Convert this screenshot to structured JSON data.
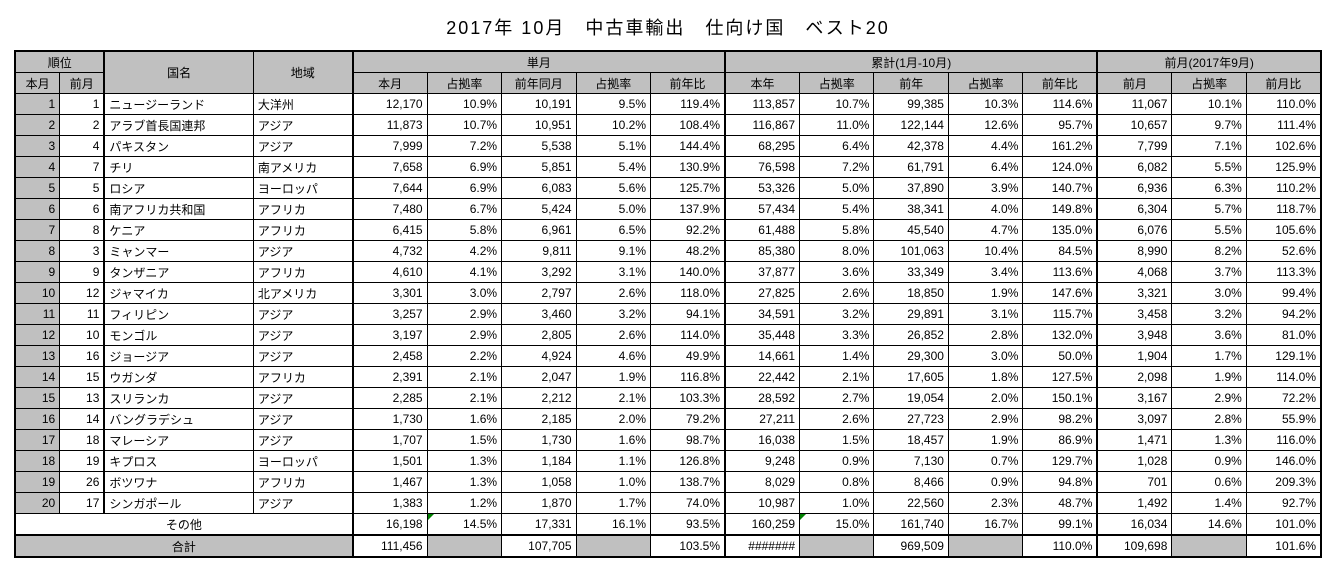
{
  "title": "2017年 10月　中古車輸出　仕向け国　ベスト20",
  "headers": {
    "rank": "順位",
    "rank_this": "本月",
    "rank_prev": "前月",
    "country": "国名",
    "region": "地域",
    "single": "単月",
    "single_this": "本月",
    "single_share": "占拠率",
    "single_prev_year": "前年同月",
    "single_prev_year_share": "占拠率",
    "single_yoy": "前年比",
    "cum": "累計(1月-10月)",
    "cum_this": "本年",
    "cum_share": "占拠率",
    "cum_prev": "前年",
    "cum_prev_share": "占拠率",
    "cum_yoy": "前年比",
    "prev_month_group": "前月(2017年9月)",
    "prev_month": "前月",
    "prev_month_share": "占拠率",
    "prev_month_ratio": "前月比"
  },
  "rows": [
    {
      "r": "1",
      "p": "1",
      "name": "ニュージーランド",
      "region": "大洋州",
      "a": "12,170",
      "b": "10.9%",
      "c": "10,191",
      "d": "9.5%",
      "e": "119.4%",
      "f": "113,857",
      "g": "10.7%",
      "h": "99,385",
      "i": "10.3%",
      "j": "114.6%",
      "k": "11,067",
      "l": "10.1%",
      "m": "110.0%"
    },
    {
      "r": "2",
      "p": "2",
      "name": "アラブ首長国連邦",
      "region": "アジア",
      "a": "11,873",
      "b": "10.7%",
      "c": "10,951",
      "d": "10.2%",
      "e": "108.4%",
      "f": "116,867",
      "g": "11.0%",
      "h": "122,144",
      "i": "12.6%",
      "j": "95.7%",
      "k": "10,657",
      "l": "9.7%",
      "m": "111.4%"
    },
    {
      "r": "3",
      "p": "4",
      "name": "パキスタン",
      "region": "アジア",
      "a": "7,999",
      "b": "7.2%",
      "c": "5,538",
      "d": "5.1%",
      "e": "144.4%",
      "f": "68,295",
      "g": "6.4%",
      "h": "42,378",
      "i": "4.4%",
      "j": "161.2%",
      "k": "7,799",
      "l": "7.1%",
      "m": "102.6%"
    },
    {
      "r": "4",
      "p": "7",
      "name": "チリ",
      "region": "南アメリカ",
      "a": "7,658",
      "b": "6.9%",
      "c": "5,851",
      "d": "5.4%",
      "e": "130.9%",
      "f": "76,598",
      "g": "7.2%",
      "h": "61,791",
      "i": "6.4%",
      "j": "124.0%",
      "k": "6,082",
      "l": "5.5%",
      "m": "125.9%"
    },
    {
      "r": "5",
      "p": "5",
      "name": "ロシア",
      "region": "ヨーロッパ",
      "a": "7,644",
      "b": "6.9%",
      "c": "6,083",
      "d": "5.6%",
      "e": "125.7%",
      "f": "53,326",
      "g": "5.0%",
      "h": "37,890",
      "i": "3.9%",
      "j": "140.7%",
      "k": "6,936",
      "l": "6.3%",
      "m": "110.2%"
    },
    {
      "r": "6",
      "p": "6",
      "name": "南アフリカ共和国",
      "region": "アフリカ",
      "a": "7,480",
      "b": "6.7%",
      "c": "5,424",
      "d": "5.0%",
      "e": "137.9%",
      "f": "57,434",
      "g": "5.4%",
      "h": "38,341",
      "i": "4.0%",
      "j": "149.8%",
      "k": "6,304",
      "l": "5.7%",
      "m": "118.7%"
    },
    {
      "r": "7",
      "p": "8",
      "name": "ケニア",
      "region": "アフリカ",
      "a": "6,415",
      "b": "5.8%",
      "c": "6,961",
      "d": "6.5%",
      "e": "92.2%",
      "f": "61,488",
      "g": "5.8%",
      "h": "45,540",
      "i": "4.7%",
      "j": "135.0%",
      "k": "6,076",
      "l": "5.5%",
      "m": "105.6%"
    },
    {
      "r": "8",
      "p": "3",
      "name": "ミャンマー",
      "region": "アジア",
      "a": "4,732",
      "b": "4.2%",
      "c": "9,811",
      "d": "9.1%",
      "e": "48.2%",
      "f": "85,380",
      "g": "8.0%",
      "h": "101,063",
      "i": "10.4%",
      "j": "84.5%",
      "k": "8,990",
      "l": "8.2%",
      "m": "52.6%"
    },
    {
      "r": "9",
      "p": "9",
      "name": "タンザニア",
      "region": "アフリカ",
      "a": "4,610",
      "b": "4.1%",
      "c": "3,292",
      "d": "3.1%",
      "e": "140.0%",
      "f": "37,877",
      "g": "3.6%",
      "h": "33,349",
      "i": "3.4%",
      "j": "113.6%",
      "k": "4,068",
      "l": "3.7%",
      "m": "113.3%"
    },
    {
      "r": "10",
      "p": "12",
      "name": "ジャマイカ",
      "region": "北アメリカ",
      "a": "3,301",
      "b": "3.0%",
      "c": "2,797",
      "d": "2.6%",
      "e": "118.0%",
      "f": "27,825",
      "g": "2.6%",
      "h": "18,850",
      "i": "1.9%",
      "j": "147.6%",
      "k": "3,321",
      "l": "3.0%",
      "m": "99.4%"
    },
    {
      "r": "11",
      "p": "11",
      "name": "フィリピン",
      "region": "アジア",
      "a": "3,257",
      "b": "2.9%",
      "c": "3,460",
      "d": "3.2%",
      "e": "94.1%",
      "f": "34,591",
      "g": "3.2%",
      "h": "29,891",
      "i": "3.1%",
      "j": "115.7%",
      "k": "3,458",
      "l": "3.2%",
      "m": "94.2%"
    },
    {
      "r": "12",
      "p": "10",
      "name": "モンゴル",
      "region": "アジア",
      "a": "3,197",
      "b": "2.9%",
      "c": "2,805",
      "d": "2.6%",
      "e": "114.0%",
      "f": "35,448",
      "g": "3.3%",
      "h": "26,852",
      "i": "2.8%",
      "j": "132.0%",
      "k": "3,948",
      "l": "3.6%",
      "m": "81.0%"
    },
    {
      "r": "13",
      "p": "16",
      "name": "ジョージア",
      "region": "アジア",
      "a": "2,458",
      "b": "2.2%",
      "c": "4,924",
      "d": "4.6%",
      "e": "49.9%",
      "f": "14,661",
      "g": "1.4%",
      "h": "29,300",
      "i": "3.0%",
      "j": "50.0%",
      "k": "1,904",
      "l": "1.7%",
      "m": "129.1%"
    },
    {
      "r": "14",
      "p": "15",
      "name": "ウガンダ",
      "region": "アフリカ",
      "a": "2,391",
      "b": "2.1%",
      "c": "2,047",
      "d": "1.9%",
      "e": "116.8%",
      "f": "22,442",
      "g": "2.1%",
      "h": "17,605",
      "i": "1.8%",
      "j": "127.5%",
      "k": "2,098",
      "l": "1.9%",
      "m": "114.0%"
    },
    {
      "r": "15",
      "p": "13",
      "name": "スリランカ",
      "region": "アジア",
      "a": "2,285",
      "b": "2.1%",
      "c": "2,212",
      "d": "2.1%",
      "e": "103.3%",
      "f": "28,592",
      "g": "2.7%",
      "h": "19,054",
      "i": "2.0%",
      "j": "150.1%",
      "k": "3,167",
      "l": "2.9%",
      "m": "72.2%"
    },
    {
      "r": "16",
      "p": "14",
      "name": "バングラデシュ",
      "region": "アジア",
      "a": "1,730",
      "b": "1.6%",
      "c": "2,185",
      "d": "2.0%",
      "e": "79.2%",
      "f": "27,211",
      "g": "2.6%",
      "h": "27,723",
      "i": "2.9%",
      "j": "98.2%",
      "k": "3,097",
      "l": "2.8%",
      "m": "55.9%"
    },
    {
      "r": "17",
      "p": "18",
      "name": "マレーシア",
      "region": "アジア",
      "a": "1,707",
      "b": "1.5%",
      "c": "1,730",
      "d": "1.6%",
      "e": "98.7%",
      "f": "16,038",
      "g": "1.5%",
      "h": "18,457",
      "i": "1.9%",
      "j": "86.9%",
      "k": "1,471",
      "l": "1.3%",
      "m": "116.0%"
    },
    {
      "r": "18",
      "p": "19",
      "name": "キプロス",
      "region": "ヨーロッパ",
      "a": "1,501",
      "b": "1.3%",
      "c": "1,184",
      "d": "1.1%",
      "e": "126.8%",
      "f": "9,248",
      "g": "0.9%",
      "h": "7,130",
      "i": "0.7%",
      "j": "129.7%",
      "k": "1,028",
      "l": "0.9%",
      "m": "146.0%"
    },
    {
      "r": "19",
      "p": "26",
      "name": "ボツワナ",
      "region": "アフリカ",
      "a": "1,467",
      "b": "1.3%",
      "c": "1,058",
      "d": "1.0%",
      "e": "138.7%",
      "f": "8,029",
      "g": "0.8%",
      "h": "8,466",
      "i": "0.9%",
      "j": "94.8%",
      "k": "701",
      "l": "0.6%",
      "m": "209.3%"
    },
    {
      "r": "20",
      "p": "17",
      "name": "シンガポール",
      "region": "アジア",
      "a": "1,383",
      "b": "1.2%",
      "c": "1,870",
      "d": "1.7%",
      "e": "74.0%",
      "f": "10,987",
      "g": "1.0%",
      "h": "22,560",
      "i": "2.3%",
      "j": "48.7%",
      "k": "1,492",
      "l": "1.4%",
      "m": "92.7%"
    }
  ],
  "other": {
    "label": "その他",
    "a": "16,198",
    "b": "14.5%",
    "c": "17,331",
    "d": "16.1%",
    "e": "93.5%",
    "f": "160,259",
    "g": "15.0%",
    "h": "161,740",
    "i": "16.7%",
    "j": "99.1%",
    "k": "16,034",
    "l": "14.6%",
    "m": "101.0%"
  },
  "total": {
    "label": "合計",
    "a": "111,456",
    "b": "",
    "c": "107,705",
    "d": "",
    "e": "103.5%",
    "f": "#######",
    "g": "",
    "h": "969,509",
    "i": "",
    "j": "110.0%",
    "k": "109,698",
    "l": "",
    "m": "101.6%"
  },
  "style": {
    "header_bg": "#c0c0c0",
    "border_color": "#000000",
    "flag_cells": [
      "other.b",
      "other.g"
    ]
  }
}
